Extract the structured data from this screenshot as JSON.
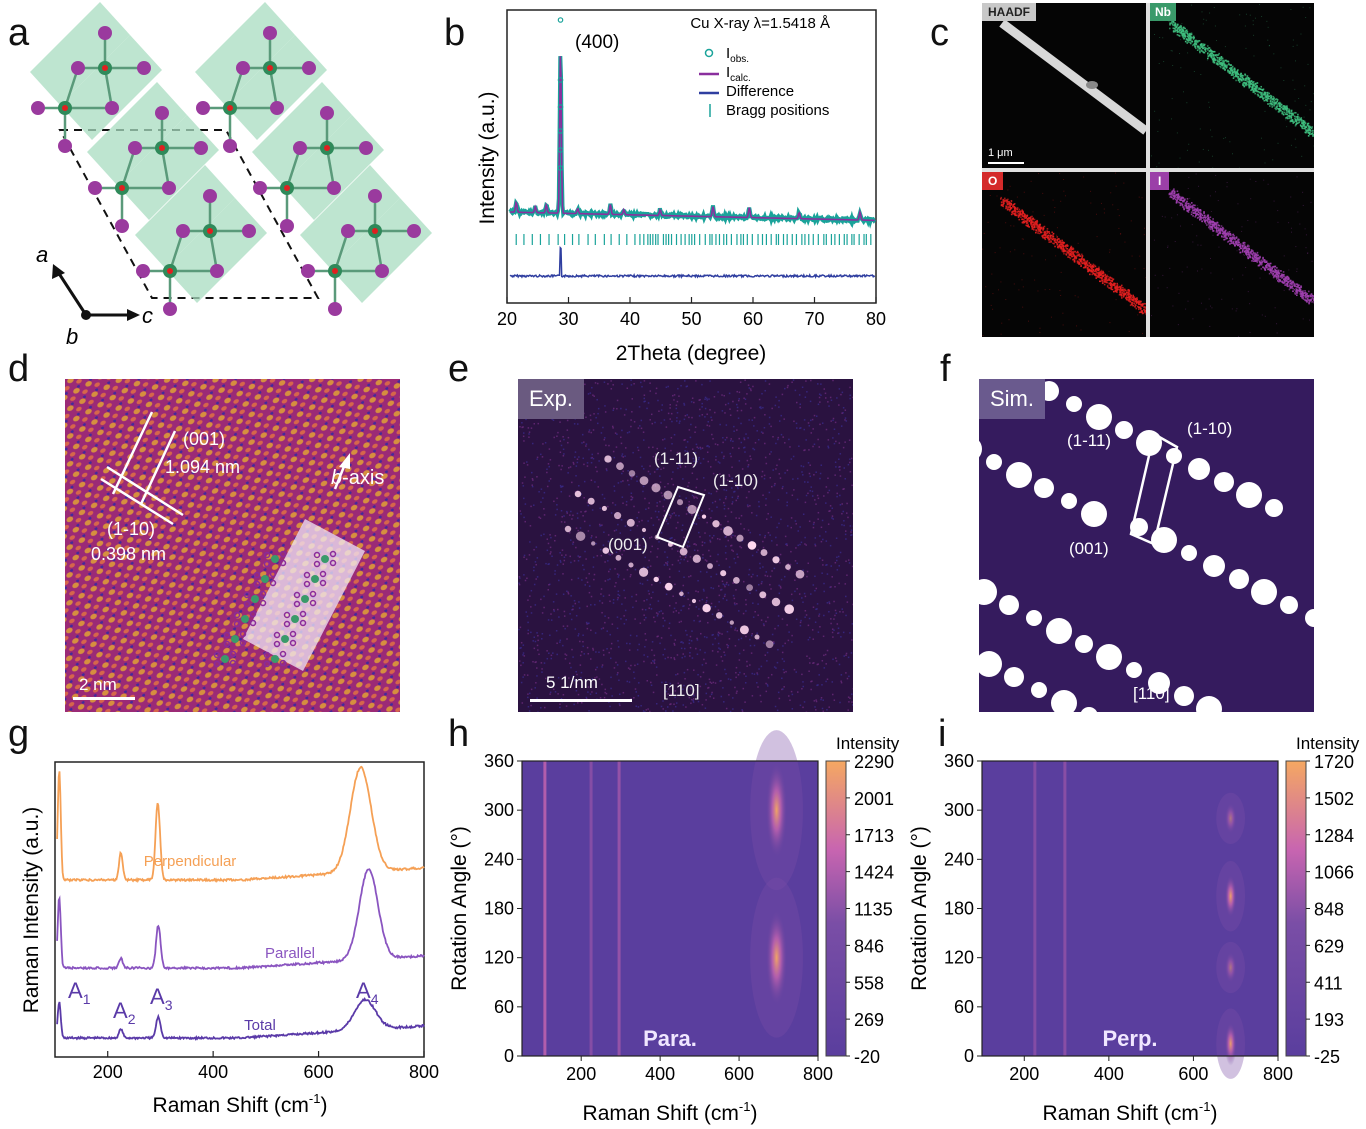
{
  "panels": {
    "a": {
      "label": "a",
      "axes": {
        "a": "a",
        "b": "b",
        "c": "c"
      }
    },
    "b": {
      "label": "b",
      "chart_data": {
        "type": "line",
        "title": "Cu X-ray λ=1.5418 Å",
        "xlabel": "2Theta (degree)",
        "ylabel": "Intensity (a.u.)",
        "xlim": [
          20,
          80
        ],
        "xticks": [
          "20",
          "30",
          "40",
          "50",
          "60",
          "70",
          "80"
        ],
        "annotation": "(400)",
        "legend_position": "top-right",
        "legend": [
          {
            "name": "Iobs.",
            "main": "I",
            "sub": "obs.",
            "color": "#1aa39a",
            "marker": "circle"
          },
          {
            "name": "Icalc.",
            "main": "I",
            "sub": "calc.",
            "color": "#8a2f9e",
            "marker": "line"
          },
          {
            "name": "Difference",
            "main": "Difference",
            "sub": "",
            "color": "#2f3ea0",
            "marker": "line"
          },
          {
            "name": "Bragg positions",
            "main": "Bragg positions",
            "sub": "",
            "color": "#1aa39a",
            "marker": "tick"
          }
        ],
        "peaks_2theta": [
          21.5,
          24.6,
          26.4,
          28.7,
          31.5,
          36.8,
          39.0,
          44.9,
          53.5,
          59.4,
          67.5,
          77.4
        ],
        "main_peak": {
          "x": 28.7,
          "relative_intensity": 1.0
        }
      }
    },
    "c": {
      "label": "c",
      "maps": [
        {
          "name": "HAADF",
          "color": "#d0d0d0",
          "tag_bg": "#c8c8c8",
          "tag_fg": "#222222"
        },
        {
          "name": "Nb",
          "color": "#3fbf7f",
          "tag_bg": "#3a9a6a",
          "tag_fg": "#ffffff"
        },
        {
          "name": "O",
          "color": "#e52020",
          "tag_bg": "#d42a2a",
          "tag_fg": "#ffffff"
        },
        {
          "name": "I",
          "color": "#a040b0",
          "tag_bg": "#9b3fa8",
          "tag_fg": "#ffffff"
        }
      ],
      "scale_bar": "1 μm"
    },
    "d": {
      "label": "d",
      "plane1": "(001)",
      "spacing1": "1.094 nm",
      "plane2": "(1-10)",
      "spacing2": "0.398 nm",
      "axis_label_italic": "b",
      "axis_label_rest": "-axis",
      "scale_bar": "2 nm"
    },
    "e": {
      "label": "e",
      "tag": "Exp.",
      "spots": [
        "(1-11)",
        "(1-10)",
        "(001)"
      ],
      "zone_axis": "[110]",
      "scale_bar": "5 1/nm"
    },
    "f": {
      "label": "f",
      "tag": "Sim.",
      "spots": [
        "(1-11)",
        "(1-10)",
        "(001)"
      ],
      "zone_axis": "[110]"
    },
    "g": {
      "label": "g",
      "chart_data": {
        "type": "line",
        "xlabel": "Raman Shift (cm-1)",
        "xlabel_main": "Raman Shift (cm",
        "xlabel_sup": "-1",
        "xlabel_end": ")",
        "ylabel": "Raman Intensity (a.u.)",
        "xlim": [
          100,
          800
        ],
        "xticks": [
          "200",
          "400",
          "600",
          "800"
        ],
        "series": [
          {
            "name": "Perpendicular",
            "color": "#f5a055",
            "peaks": [
              {
                "x": 108,
                "h": 1.0
              },
              {
                "x": 225,
                "h": 0.25
              },
              {
                "x": 295,
                "h": 0.7
              },
              {
                "x": 680,
                "h": 0.95
              }
            ]
          },
          {
            "name": "Parallel",
            "color": "#8a55c0",
            "peaks": [
              {
                "x": 108,
                "h": 0.75
              },
              {
                "x": 225,
                "h": 0.1
              },
              {
                "x": 296,
                "h": 0.45
              },
              {
                "x": 695,
                "h": 0.95
              }
            ]
          },
          {
            "name": "Total",
            "color": "#5a3aa8",
            "peaks": [
              {
                "x": 108,
                "h": 0.6
              },
              {
                "x": 225,
                "h": 0.15
              },
              {
                "x": 296,
                "h": 0.35
              },
              {
                "x": 688,
                "h": 0.5
              }
            ]
          }
        ],
        "mode_labels": [
          {
            "main": "A",
            "sub": "1"
          },
          {
            "main": "A",
            "sub": "2"
          },
          {
            "main": "A",
            "sub": "3"
          },
          {
            "main": "A",
            "sub": "4"
          }
        ]
      }
    },
    "h": {
      "label": "h",
      "chart_data": {
        "type": "heatmap",
        "xlabel_main": "Raman Shift (cm",
        "xlabel_sup": "-1",
        "xlabel_end": ")",
        "ylabel": "Rotation Angle (°)",
        "xlim": [
          50,
          800
        ],
        "ylim": [
          0,
          360
        ],
        "xticks": [
          "200",
          "400",
          "600",
          "800"
        ],
        "yticks": [
          "0",
          "60",
          "120",
          "180",
          "240",
          "300",
          "360"
        ],
        "colorbar_title": "Intensity",
        "colorbar_ticks": [
          "2290",
          "2001",
          "1713",
          "1424",
          "1135",
          "846",
          "558",
          "269",
          "-20"
        ],
        "crange": [
          -20,
          2290
        ],
        "tag": "Para.",
        "hotspots": [
          {
            "x": 695,
            "y": 300,
            "v": 2200
          },
          {
            "x": 695,
            "y": 120,
            "v": 2200
          }
        ],
        "lines": [
          {
            "x": 108,
            "v": 900
          },
          {
            "x": 225,
            "v": 300
          },
          {
            "x": 296,
            "v": 500
          }
        ]
      }
    },
    "i": {
      "label": "i",
      "chart_data": {
        "type": "heatmap",
        "xlabel_main": "Raman Shift (cm",
        "xlabel_sup": "-1",
        "xlabel_end": ")",
        "ylabel": "Rotation Angle (°)",
        "xlim": [
          100,
          800
        ],
        "ylim": [
          0,
          360
        ],
        "xticks": [
          "200",
          "400",
          "600",
          "800"
        ],
        "yticks": [
          "0",
          "60",
          "120",
          "180",
          "240",
          "300",
          "360"
        ],
        "colorbar_title": "Intensity",
        "colorbar_ticks": [
          "1720",
          "1502",
          "1284",
          "1066",
          "848",
          "629",
          "411",
          "193",
          "-25"
        ],
        "crange": [
          -25,
          1720
        ],
        "tag": "Perp.",
        "hotspots": [
          {
            "x": 688,
            "y": 15,
            "v": 1600
          },
          {
            "x": 688,
            "y": 195,
            "v": 1650
          },
          {
            "x": 688,
            "y": 108,
            "v": 900
          },
          {
            "x": 688,
            "y": 290,
            "v": 900
          }
        ],
        "lines": [
          {
            "x": 225,
            "v": 200
          },
          {
            "x": 296,
            "v": 250
          }
        ]
      }
    }
  },
  "colors": {
    "heat_low": "#5a3e9e",
    "heat_mid": "#c865b0",
    "heat_high": "#f5a862",
    "crystal_poly": "#a8dcc0",
    "iodine": "#9a3a9e",
    "niobium": "#2f8a5a",
    "oxygen": "#e02020"
  }
}
